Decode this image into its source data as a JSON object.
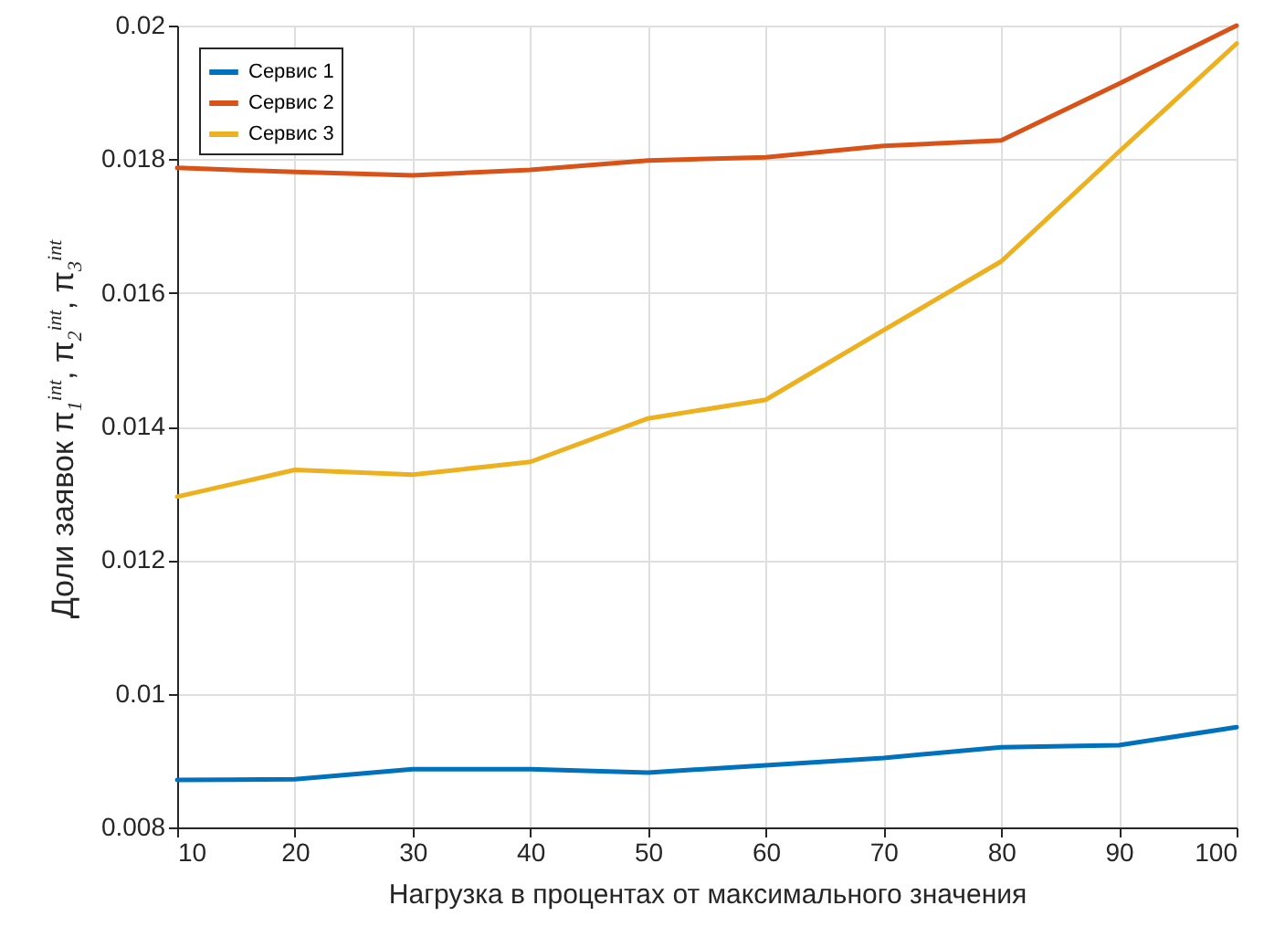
{
  "chart_data": {
    "type": "line",
    "xlabel": "Нагрузка в процентах от максимального значения",
    "ylabel": "Доли заявок  π$_{1}$$^{int}$,  π$_{2}$$^{int}$,  π$_{3}$$^{int}$",
    "x": [
      10,
      20,
      30,
      40,
      50,
      60,
      70,
      80,
      90,
      100
    ],
    "series": [
      {
        "name": "Сервис 1",
        "color": "#0072bd",
        "values": [
          0.00871,
          0.00872,
          0.00887,
          0.00887,
          0.00882,
          0.00893,
          0.00904,
          0.0092,
          0.00923,
          0.0095
        ]
      },
      {
        "name": "Сервис 2",
        "color": "#d95319",
        "values": [
          0.01787,
          0.01781,
          0.01776,
          0.01784,
          0.01798,
          0.01803,
          0.0182,
          0.01828,
          0.01913,
          0.02
        ]
      },
      {
        "name": "Сервис 3",
        "color": "#edb120",
        "values": [
          0.01295,
          0.01335,
          0.01328,
          0.01347,
          0.01412,
          0.0144,
          0.01544,
          0.01647,
          0.01811,
          0.01973
        ]
      }
    ],
    "xlim": [
      10,
      100
    ],
    "xticks": [
      10,
      20,
      30,
      40,
      50,
      60,
      70,
      80,
      90,
      100
    ],
    "ylim": [
      0.008,
      0.02
    ],
    "yticks": [
      0.008,
      0.01,
      0.012,
      0.014,
      0.016,
      0.018,
      0.02
    ],
    "grid": true,
    "legend": "top left",
    "marker": "none",
    "line_style": "solid"
  }
}
